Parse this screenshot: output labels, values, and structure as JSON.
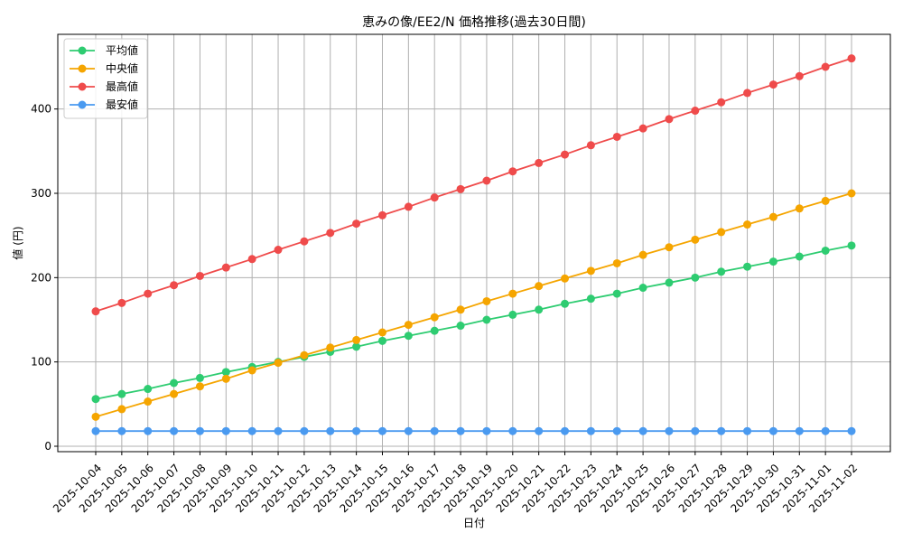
{
  "chart_data": {
    "type": "line",
    "title": "恵みの像/EE2/N 価格推移(過去30日間)",
    "xlabel": "日付",
    "ylabel": "値 (円)",
    "categories": [
      "2025-10-04",
      "2025-10-05",
      "2025-10-06",
      "2025-10-07",
      "2025-10-08",
      "2025-10-09",
      "2025-10-10",
      "2025-10-11",
      "2025-10-12",
      "2025-10-13",
      "2025-10-14",
      "2025-10-15",
      "2025-10-16",
      "2025-10-17",
      "2025-10-18",
      "2025-10-19",
      "2025-10-20",
      "2025-10-21",
      "2025-10-22",
      "2025-10-23",
      "2025-10-24",
      "2025-10-25",
      "2025-10-26",
      "2025-10-27",
      "2025-10-28",
      "2025-10-29",
      "2025-10-30",
      "2025-10-31",
      "2025-11-01",
      "2025-11-02"
    ],
    "ylim": [
      0,
      480
    ],
    "yticks": [
      0,
      100,
      200,
      300,
      400
    ],
    "grid": true,
    "legend_position": "top-left",
    "series": [
      {
        "name": "平均値",
        "color": "#2ecc71",
        "values": [
          56,
          62,
          68,
          75,
          81,
          88,
          94,
          100,
          106,
          112,
          118,
          125,
          131,
          137,
          143,
          150,
          156,
          162,
          169,
          175,
          181,
          188,
          194,
          200,
          207,
          213,
          219,
          225,
          232,
          238
        ]
      },
      {
        "name": "中央値",
        "color": "#f5a500",
        "values": [
          35,
          44,
          53,
          62,
          71,
          80,
          90,
          99,
          108,
          117,
          126,
          135,
          144,
          153,
          162,
          172,
          181,
          190,
          199,
          208,
          217,
          227,
          236,
          245,
          254,
          263,
          272,
          282,
          291,
          300
        ]
      },
      {
        "name": "最高値",
        "color": "#ef4b4b",
        "values": [
          160,
          170,
          181,
          191,
          202,
          212,
          222,
          233,
          243,
          253,
          264,
          274,
          284,
          295,
          305,
          315,
          326,
          336,
          346,
          357,
          367,
          377,
          388,
          398,
          408,
          419,
          429,
          439,
          450,
          460
        ]
      },
      {
        "name": "最安値",
        "color": "#4a9af0",
        "values": [
          18,
          18,
          18,
          18,
          18,
          18,
          18,
          18,
          18,
          18,
          18,
          18,
          18,
          18,
          18,
          18,
          18,
          18,
          18,
          18,
          18,
          18,
          18,
          18,
          18,
          18,
          18,
          18,
          18,
          18
        ]
      }
    ]
  }
}
